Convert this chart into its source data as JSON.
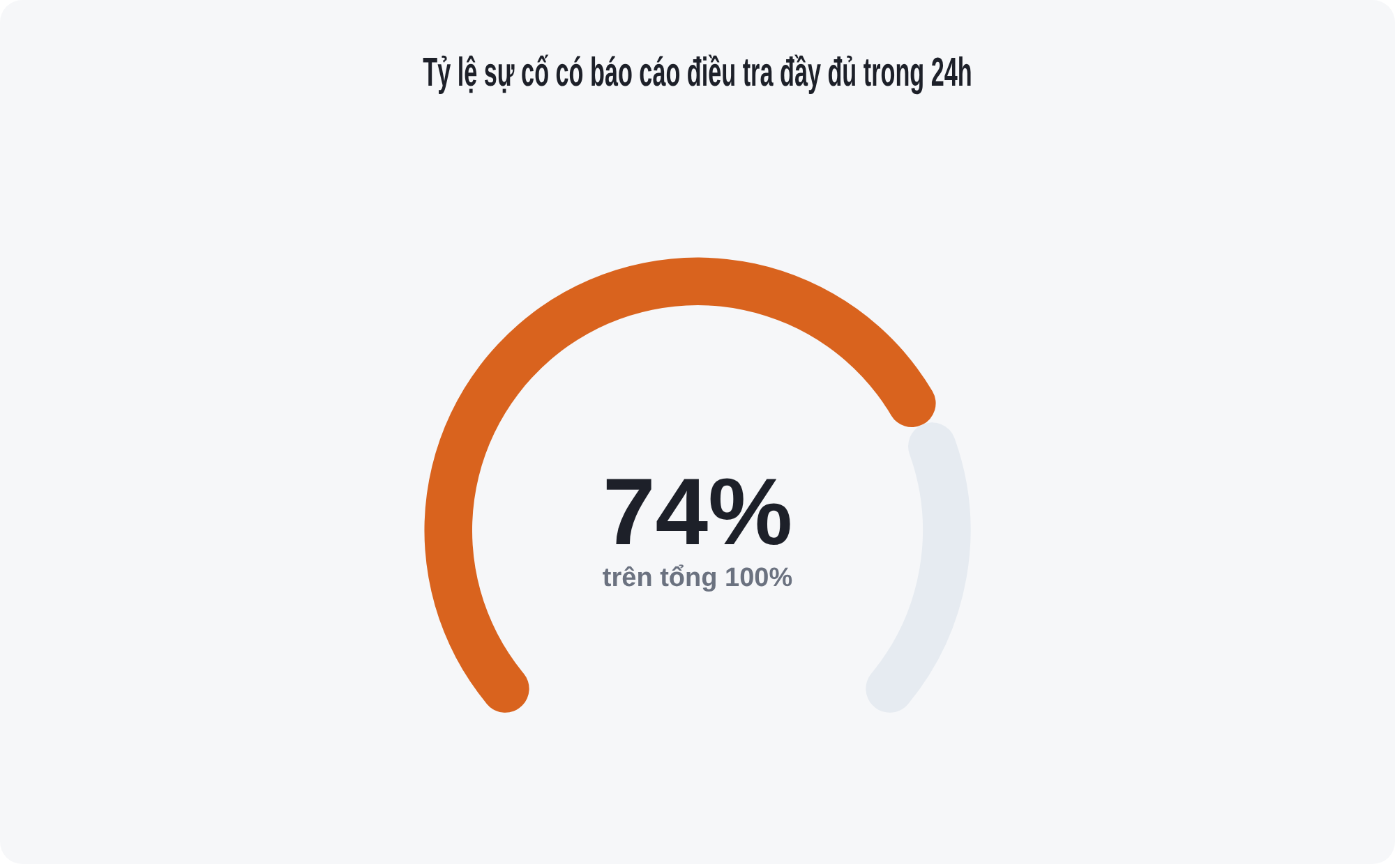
{
  "chart_data": {
    "type": "donut",
    "title": "Tỷ lệ sự cố có báo cáo điều tra đầy đủ trong 24h",
    "categories": [
      null,
      null
    ],
    "values": [
      74,
      26
    ],
    "colors": [
      "#d9631e",
      "#e6ebf1"
    ],
    "annotations": [
      "74%",
      "trên tổng 100%"
    ]
  }
}
